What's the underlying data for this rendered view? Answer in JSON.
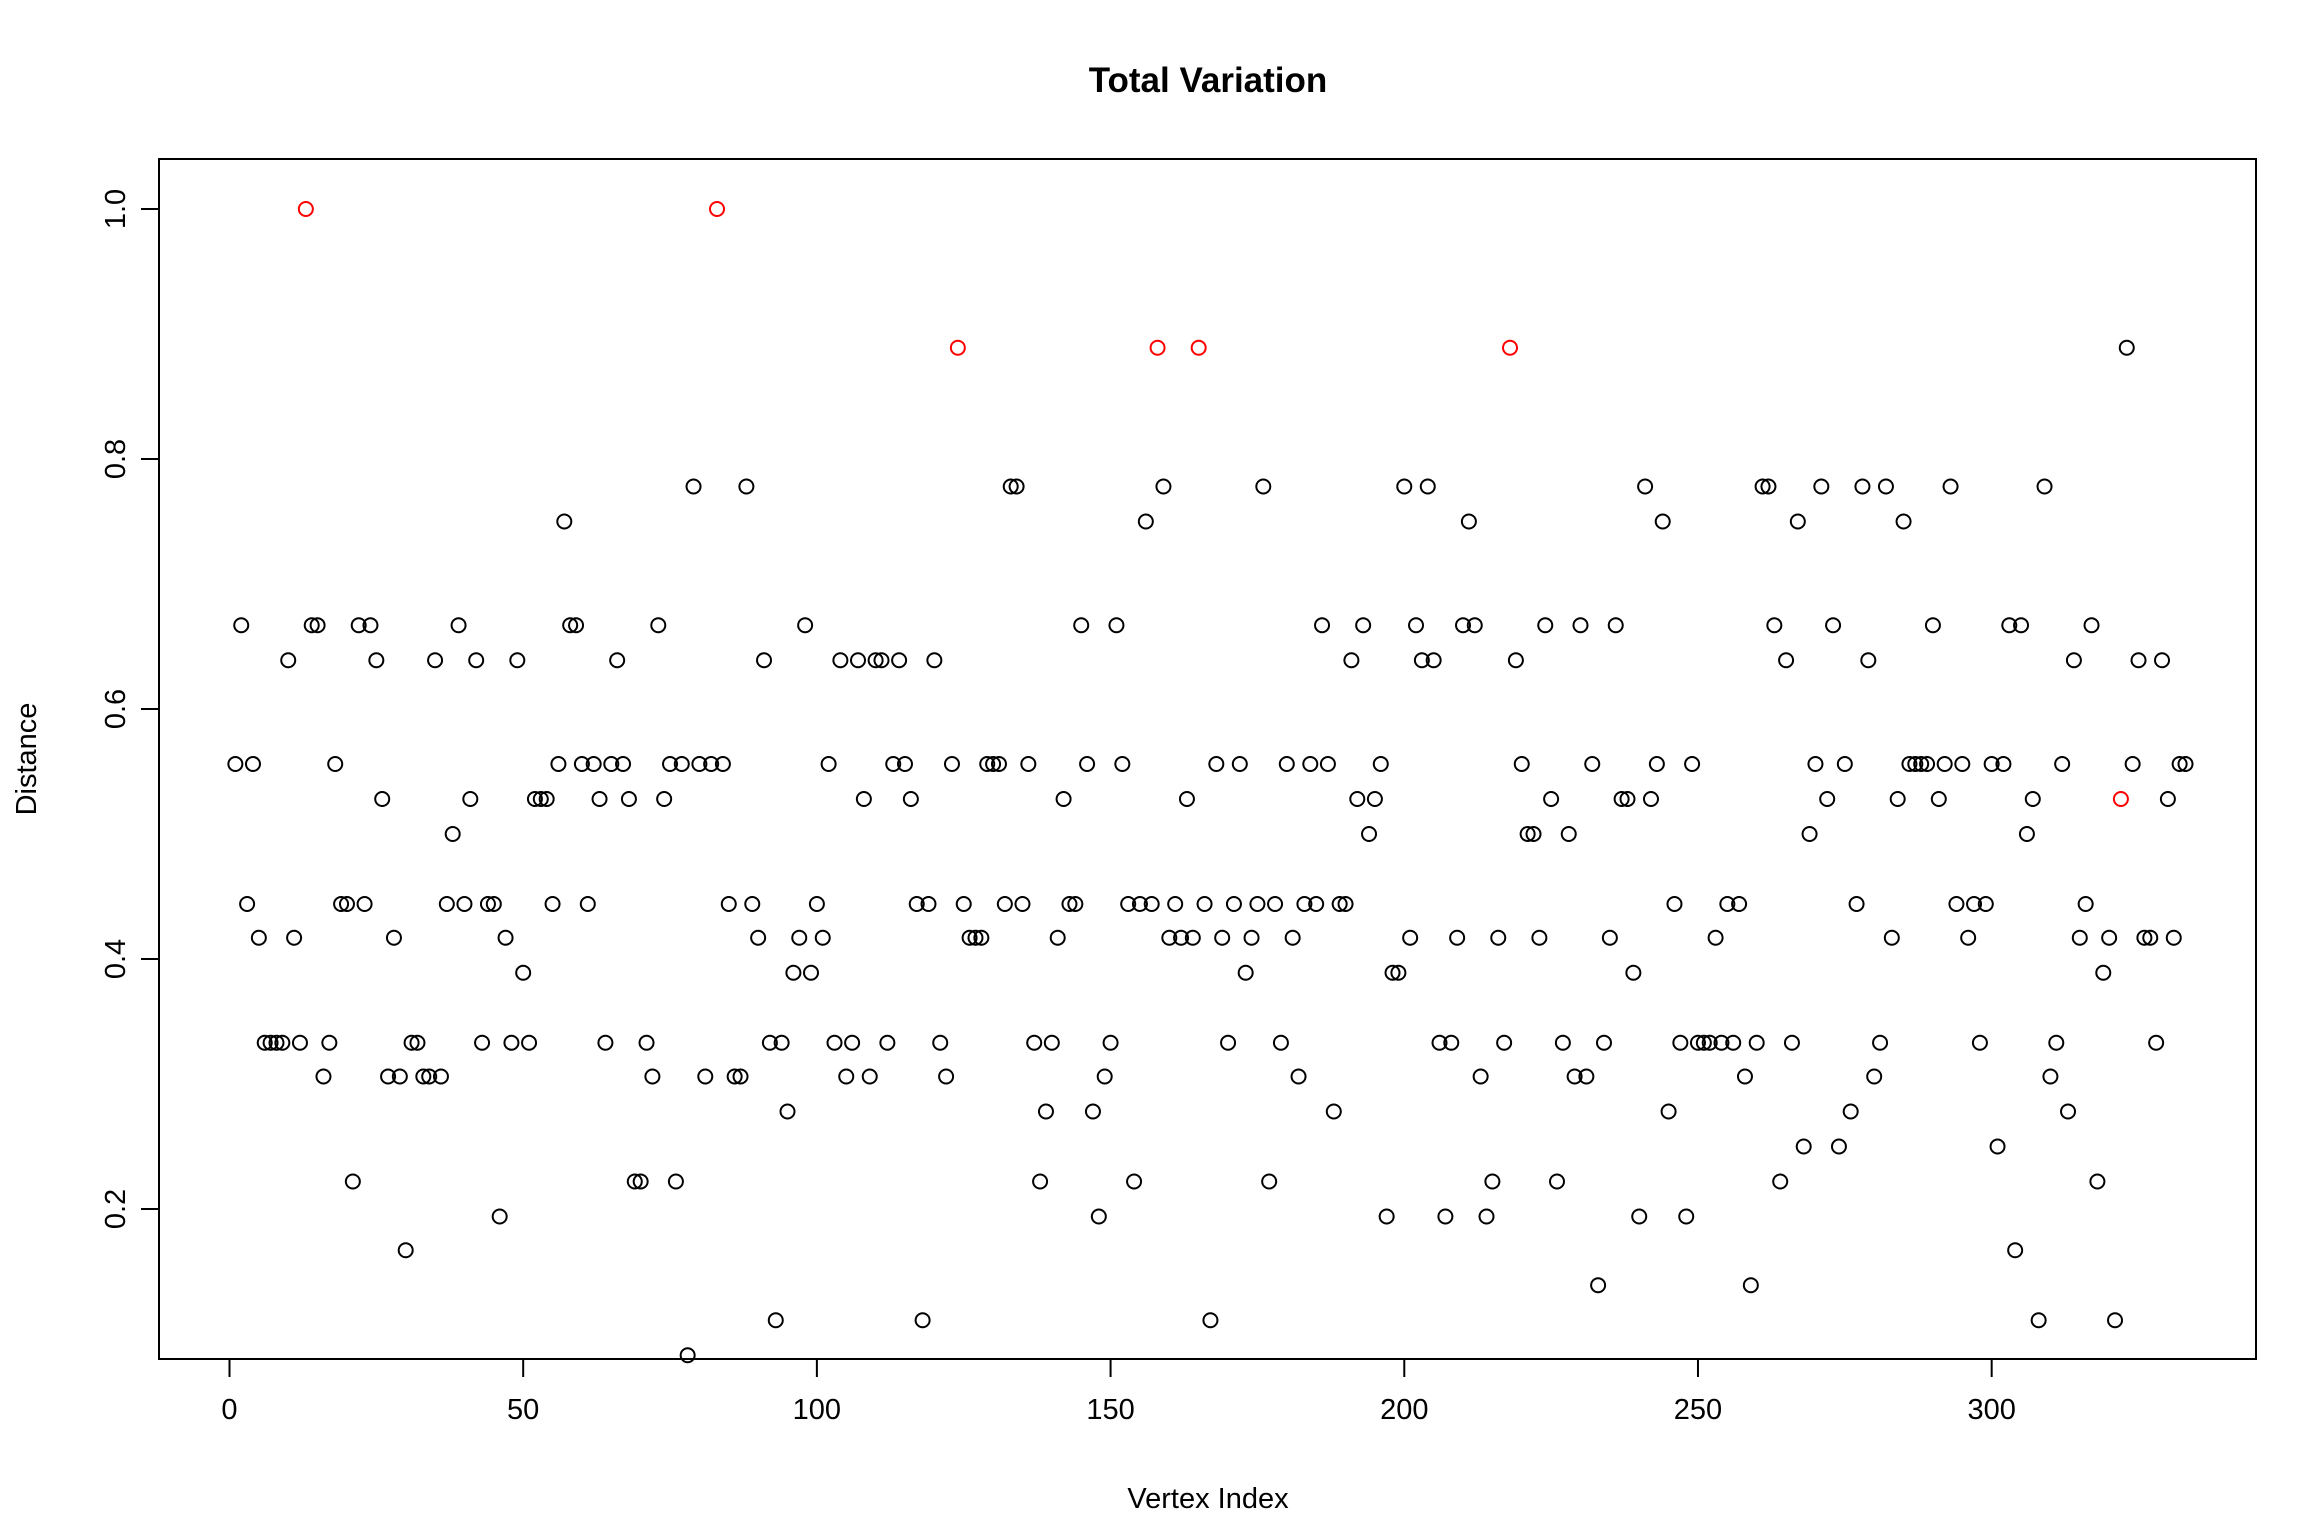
{
  "chart_data": {
    "type": "scatter",
    "title": "Total Variation",
    "xlabel": "Vertex Index",
    "ylabel": "Distance",
    "xlim": [
      -12,
      345
    ],
    "ylim": [
      0.08,
      1.04
    ],
    "xticks": [
      0,
      50,
      100,
      150,
      200,
      250,
      300
    ],
    "yticks": [
      0.2,
      0.4,
      0.6,
      0.8,
      1.0
    ],
    "xtick_labels": [
      "0",
      "50",
      "100",
      "150",
      "200",
      "250",
      "300"
    ],
    "ytick_labels": [
      "0.2",
      "0.4",
      "0.6",
      "0.8",
      "1.0"
    ],
    "grid": false,
    "legend": "none",
    "colors": {
      "normal": "#000000",
      "highlight": "#ff0000"
    },
    "series": [
      {
        "values": [
          0.556,
          0.667,
          0.444,
          0.556,
          0.417,
          0.333,
          0.333,
          0.333,
          0.333,
          0.639,
          0.417,
          0.333,
          1.0,
          0.667,
          0.667,
          0.306,
          0.333,
          0.556,
          0.444,
          0.444,
          0.222,
          0.667,
          0.444,
          0.667,
          0.639,
          0.528,
          0.306,
          0.417,
          0.306,
          0.167,
          0.333,
          0.333,
          0.306,
          0.306,
          0.639,
          0.306,
          0.444,
          0.5,
          0.667,
          0.444,
          0.528,
          0.639,
          0.333,
          0.444,
          0.444,
          0.194,
          0.417,
          0.333,
          0.639,
          0.389,
          0.333,
          0.528,
          0.528,
          0.528,
          0.444,
          0.556,
          0.75,
          0.667,
          0.667,
          0.556,
          0.444,
          0.556,
          0.528,
          0.333,
          0.556,
          0.639,
          0.556,
          0.528,
          0.222,
          0.222,
          0.333,
          0.306,
          0.667,
          0.528,
          0.556,
          0.222,
          0.556,
          0.083,
          0.778,
          0.556,
          0.306,
          0.556,
          1.0,
          0.556,
          0.444,
          0.306,
          0.306,
          0.778,
          0.444,
          0.417,
          0.639,
          0.333,
          0.111,
          0.333,
          0.278,
          0.389,
          0.417,
          0.667,
          0.389,
          0.444,
          0.417,
          0.556,
          0.333,
          0.639,
          0.306,
          0.333,
          0.639,
          0.528,
          0.306,
          0.639,
          0.639,
          0.333,
          0.556,
          0.639,
          0.556,
          0.528,
          0.444,
          0.111,
          0.444,
          0.639,
          0.333,
          0.306,
          0.556,
          0.889,
          0.444,
          0.417,
          0.417,
          0.417,
          0.556,
          0.556,
          0.556,
          0.444,
          0.778,
          0.778,
          0.444,
          0.556,
          0.333,
          0.222,
          0.278,
          0.333,
          0.417,
          0.528,
          0.444,
          0.444,
          0.667,
          0.556,
          0.278,
          0.194,
          0.306,
          0.333,
          0.667,
          0.556,
          0.444,
          0.222,
          0.444,
          0.75,
          0.444,
          0.889,
          0.778,
          0.417,
          0.444,
          0.417,
          0.528,
          0.417,
          0.889,
          0.444,
          0.111,
          0.556,
          0.417,
          0.333,
          0.444,
          0.556,
          0.389,
          0.417,
          0.444,
          0.778,
          0.222,
          0.444,
          0.333,
          0.556,
          0.417,
          0.306,
          0.444,
          0.556,
          0.444,
          0.667,
          0.556,
          0.278,
          0.444,
          0.444,
          0.639,
          0.528,
          0.667,
          0.5,
          0.528,
          0.556,
          0.194,
          0.389,
          0.389,
          0.778,
          0.417,
          0.667,
          0.639,
          0.778,
          0.639,
          0.333,
          0.194,
          0.333,
          0.417,
          0.667,
          0.75,
          0.667,
          0.306,
          0.194,
          0.222,
          0.417,
          0.333,
          0.889,
          0.639,
          0.556,
          0.5,
          0.5,
          0.417,
          0.667,
          0.528,
          0.222,
          0.333,
          0.5,
          0.306,
          0.667,
          0.306,
          0.556,
          0.139,
          0.333,
          0.417,
          0.667,
          0.528,
          0.528,
          0.389,
          0.194,
          0.778,
          0.528,
          0.556,
          0.75,
          0.278,
          0.444,
          0.333,
          0.194,
          0.556,
          0.333,
          0.333,
          0.333,
          0.417,
          0.333,
          0.444,
          0.333,
          0.444,
          0.306,
          0.139,
          0.333,
          0.778,
          0.778,
          0.667,
          0.222,
          0.639,
          0.333,
          0.75,
          0.25,
          0.5,
          0.556,
          0.778,
          0.528,
          0.667,
          0.25,
          0.556,
          0.278,
          0.444,
          0.778,
          0.639,
          0.306,
          0.333,
          0.778,
          0.417,
          0.528,
          0.75,
          0.556,
          0.556,
          0.556,
          0.556,
          0.667,
          0.528,
          0.556,
          0.778,
          0.444,
          0.556,
          0.417,
          0.444,
          0.333,
          0.444,
          0.556,
          0.25,
          0.556,
          0.667,
          0.167,
          0.667,
          0.5,
          0.528,
          0.111,
          0.778,
          0.306,
          0.333,
          0.556,
          0.278,
          0.639,
          0.417,
          0.444,
          0.667,
          0.222,
          0.389,
          0.417,
          0.111,
          0.528,
          0.889,
          0.556,
          0.639,
          0.417,
          0.417,
          0.333,
          0.639,
          0.528,
          0.417,
          0.556,
          0.556
        ],
        "highlight_indices": [
          13,
          83,
          124,
          158,
          165,
          218,
          322
        ]
      }
    ]
  }
}
